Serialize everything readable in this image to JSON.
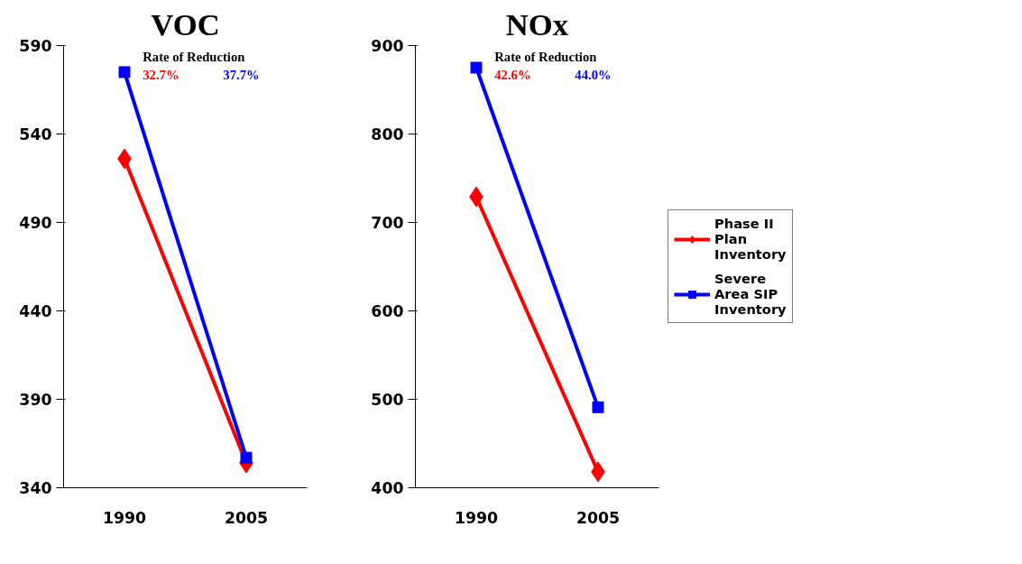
{
  "chart_data": [
    {
      "type": "line",
      "title": "VOC",
      "categories": [
        "1990",
        "2005"
      ],
      "ylim": [
        340,
        590
      ],
      "yticks": [
        340,
        390,
        440,
        490,
        540,
        590
      ],
      "grid": false,
      "legend": false,
      "annotations": [
        "Rate of Reduction",
        "32.7%",
        "37.7%"
      ],
      "series": [
        {
          "color": "#ff0000",
          "marker": "diamond",
          "values": [
            526,
            354
          ]
        },
        {
          "color": "#0000ff",
          "marker": "square",
          "values": [
            575,
            357
          ]
        }
      ]
    },
    {
      "type": "line",
      "title": "NOx",
      "categories": [
        "1990",
        "2005"
      ],
      "ylim": [
        400,
        900
      ],
      "yticks": [
        400,
        500,
        600,
        700,
        800,
        900
      ],
      "grid": false,
      "legend": "right",
      "annotations": [
        "Rate of Reduction",
        "42.6%",
        "44.0%"
      ],
      "series": [
        {
          "name": "Phase II Plan Inventory",
          "color": "#ff0000",
          "marker": "diamond",
          "values": [
            729,
            418
          ]
        },
        {
          "name": "Severe Area SIP Inventory",
          "color": "#0000ff",
          "marker": "square",
          "values": [
            875,
            491
          ]
        }
      ]
    }
  ]
}
